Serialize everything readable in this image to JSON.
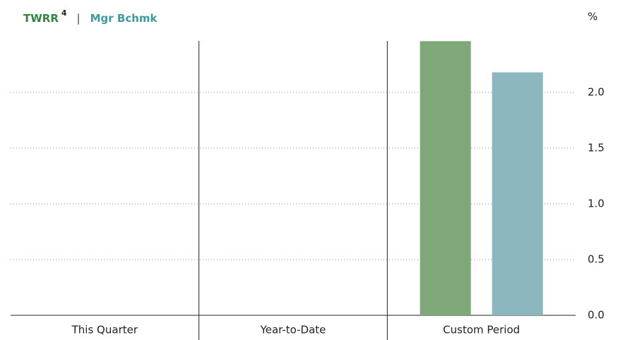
{
  "chart_data": {
    "type": "bar",
    "unit_label": "%",
    "legend_separator": "|",
    "footnote_ref": "4",
    "categories": [
      "This Quarter",
      "Year-to-Date",
      "Custom Period"
    ],
    "series": [
      {
        "name": "TWRR",
        "color": "#7ea877",
        "label_color": "#2e8540",
        "values": [
          null,
          null,
          2.46
        ]
      },
      {
        "name": "Mgr Bchmk",
        "color": "#8cb7bf",
        "label_color": "#3a9ca0",
        "values": [
          null,
          null,
          2.18
        ]
      }
    ],
    "ylim": [
      0,
      2.5
    ],
    "yticks": [
      {
        "value": 0,
        "label": "0.0"
      },
      {
        "value": 0.5,
        "label": "0.5"
      },
      {
        "value": 1,
        "label": "1.0"
      },
      {
        "value": 1.5,
        "label": "1.5"
      },
      {
        "value": 2,
        "label": "2.0"
      }
    ],
    "grid": true
  }
}
